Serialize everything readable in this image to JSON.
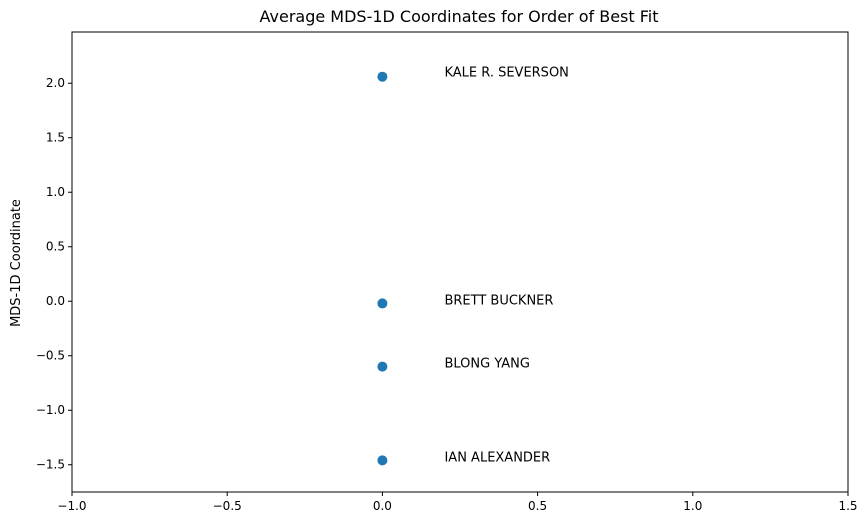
{
  "chart_data": {
    "type": "scatter",
    "title": "Average MDS-1D Coordinates for Order of Best Fit",
    "xlabel": "",
    "ylabel": "MDS-1D Coordinate",
    "xlim": [
      -1.0,
      1.5
    ],
    "ylim": [
      -1.75,
      2.47
    ],
    "xticks": [
      -1.0,
      -0.5,
      0.0,
      0.5,
      1.0,
      1.5
    ],
    "xtick_labels": [
      "−1.0",
      "−0.5",
      "0.0",
      "0.5",
      "1.0",
      "1.5"
    ],
    "yticks": [
      -1.5,
      -1.0,
      -0.5,
      0.0,
      0.5,
      1.0,
      1.5,
      2.0
    ],
    "ytick_labels": [
      "−1.5",
      "−1.0",
      "−0.5",
      "0.0",
      "0.5",
      "1.0",
      "1.5",
      "2.0"
    ],
    "grid": false,
    "marker_color": "#1f77b4",
    "points": [
      {
        "label": "KALE R. SEVERSON",
        "x": 0.0,
        "y": 2.06,
        "label_x": 0.2,
        "label_y": 2.07
      },
      {
        "label": "BRETT BUCKNER",
        "x": 0.0,
        "y": -0.02,
        "label_x": 0.2,
        "label_y": -0.02
      },
      {
        "label": "BLONG YANG",
        "x": 0.0,
        "y": -0.6,
        "label_x": 0.2,
        "label_y": -0.6
      },
      {
        "label": "IAN ALEXANDER",
        "x": 0.0,
        "y": -1.46,
        "label_x": 0.2,
        "label_y": -1.46
      }
    ]
  }
}
